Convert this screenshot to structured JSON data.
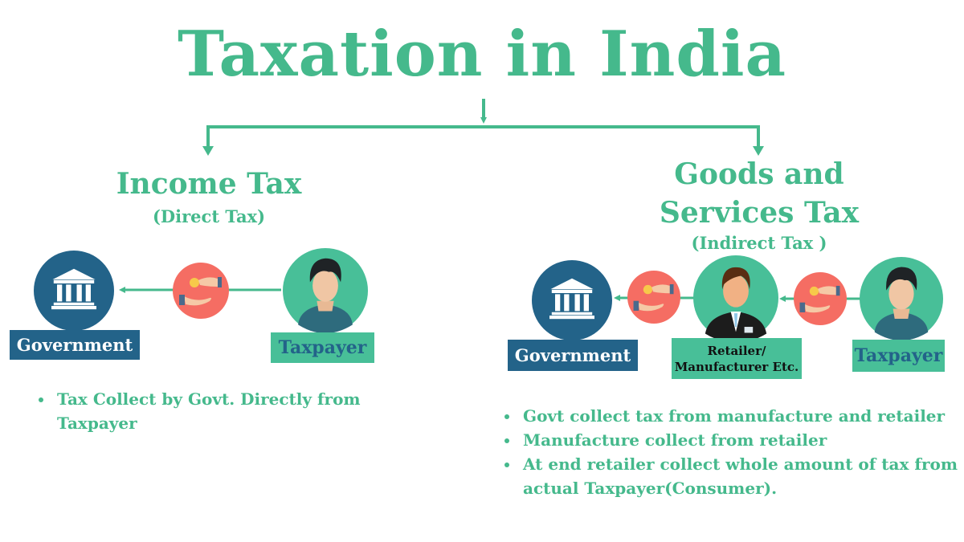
{
  "title": "Taxation in India",
  "colors": {
    "green": "#45b98c",
    "navy": "#236389",
    "coin_bg": "#f56d63"
  },
  "income_tax": {
    "heading": "Income Tax",
    "subheading": "(Direct Tax)",
    "nodes": [
      {
        "label": "Government",
        "icon": "bank-icon"
      },
      {
        "icon": "hand-coin-icon"
      },
      {
        "label": "Taxpayer",
        "icon": "person-icon"
      }
    ],
    "bullets": [
      "Tax Collect by Govt. Directly from Taxpayer"
    ]
  },
  "gst": {
    "heading_line1": "Goods and",
    "heading_line2": "Services Tax",
    "subheading": "(Indirect Tax )",
    "nodes": [
      {
        "label": "Government",
        "icon": "bank-icon"
      },
      {
        "icon": "hand-coin-icon"
      },
      {
        "label_line1": "Retailer/",
        "label_line2": "Manufacturer Etc.",
        "icon": "businessman-icon"
      },
      {
        "icon": "hand-coin-icon"
      },
      {
        "label": "Taxpayer",
        "icon": "person-icon"
      }
    ],
    "bullets": [
      "Govt collect tax from manufacture and retailer",
      "Manufacture collect from retailer",
      "At end retailer collect whole amount of tax from actual Taxpayer(Consumer)."
    ]
  }
}
